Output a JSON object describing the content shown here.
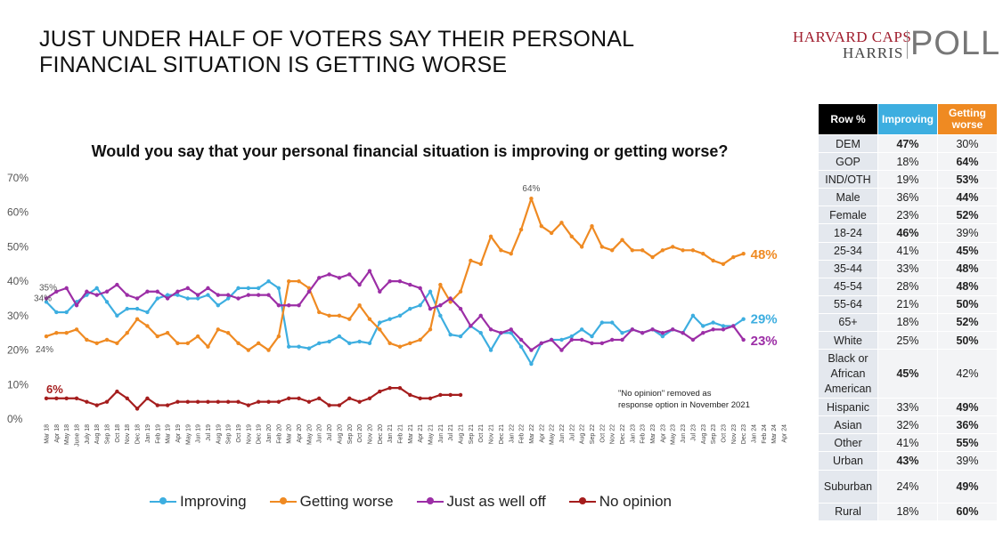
{
  "headline": "JUST UNDER HALF OF VOTERS SAY THEIR PERSONAL FINANCIAL SITUATION IS GETTING WORSE",
  "logo": {
    "caps": "HARVARD CAPS",
    "harris": "HARRIS",
    "poll": "POLL"
  },
  "colors": {
    "improving": "#3daee0",
    "worse": "#ef8a22",
    "same": "#9c2ea6",
    "noop": "#a51d1d"
  },
  "chart_data": {
    "type": "line",
    "title": "Would you say that your personal financial situation is improving or getting worse?",
    "ylim": [
      0,
      70
    ],
    "yticks": [
      "0%",
      "10%",
      "20%",
      "30%",
      "40%",
      "50%",
      "60%",
      "70%"
    ],
    "grid": false,
    "legend_position": "bottom",
    "x": [
      "Mar 18",
      "Apr 18",
      "May 18",
      "Jun 18",
      "July 18",
      "Aug 18",
      "Sep 18",
      "Oct 18",
      "Nov 18",
      "Dec 18",
      "Jan 19",
      "Feb 19",
      "Mar 19",
      "Apr 19",
      "May 19",
      "Jun 19",
      "Jul 19",
      "Aug 19",
      "Sep 19",
      "Oct 19",
      "Nov 19",
      "Dec 19",
      "Jan 20",
      "Feb 20",
      "Mar 20",
      "Apr 20",
      "May 20",
      "Jun 20",
      "Jul 20",
      "Aug 20",
      "Sep 20",
      "Oct 20",
      "Nov 20",
      "Dec 20",
      "Jan 21",
      "Feb 21",
      "Mar 21",
      "Apr 21",
      "May 21",
      "Jun 21",
      "Jul 21",
      "Aug 21",
      "Sep 21",
      "Oct 21",
      "Nov 21",
      "Dec 21",
      "Jan 22",
      "Feb 22",
      "Mar 22",
      "Apr 22",
      "May 22",
      "Jun 22",
      "Jul 22",
      "Aug 22",
      "Sep 22",
      "Oct 22",
      "Nov 22",
      "Dec 22",
      "Jan 23",
      "Feb 23",
      "Mar 23",
      "Apr 23",
      "May 23",
      "Jun 23",
      "Jul 23",
      "Aug 23",
      "Sep 23",
      "Oct 23",
      "Nov 23",
      "Dec 23",
      "Jan 24",
      "Feb 24",
      "Mar 24",
      "Apr 24"
    ],
    "xticks": [
      "Mar 18",
      "Apr 18",
      "May 18",
      "June 18",
      "July 18",
      "Aug 18",
      "Sep 18",
      "Oct 18",
      "Nov 18",
      "Dec 18",
      "Jan 19",
      "Feb 19",
      "Mar 19",
      "Apr 19",
      "May 19",
      "Jun 19",
      "Jul 19",
      "Aug 19",
      "Sep 19",
      "Oct 19",
      "Nov 19",
      "Dec 19",
      "Jan 20",
      "Feb 20",
      "Mar 20",
      "Apr 20",
      "May 20",
      "Jun 20",
      "Jul 20",
      "Aug 20",
      "Sep 20",
      "Oct 20",
      "Nov 20",
      "Dec 20",
      "Jan 21",
      "Feb 21",
      "Mar 21",
      "Apr 21",
      "May 21",
      "Jun 21",
      "Jul 21",
      "Aug 21",
      "Sep 21",
      "Oct 21",
      "Nov 21",
      "Dec 21",
      "Jan 22",
      "Feb 22",
      "Mar 22",
      "Apr 22",
      "May 22",
      "Jun 22",
      "Jul 22",
      "Aug 22",
      "Sep 22",
      "Oct 22",
      "Nov 22",
      "Dec 22",
      "Jan 23",
      "Feb 23",
      "Mar 23",
      "Apr 23",
      "May 23",
      "Jun 23",
      "Jul 23",
      "Aug 23",
      "Sep 23",
      "Oct 23",
      "Nov 23",
      "Dec 23",
      "Jan 24",
      "Feb 24",
      "Mar 24",
      "Apr 24"
    ],
    "series": [
      {
        "name": "Improving",
        "key": "improving",
        "values": [
          34,
          31,
          31,
          34,
          36,
          38,
          34,
          30,
          32,
          32,
          31,
          35,
          36,
          36,
          35,
          35,
          36,
          33,
          35,
          38,
          38,
          38,
          40,
          38,
          21,
          21,
          20.5,
          22,
          22.5,
          24,
          22,
          22.5,
          22,
          28,
          29,
          30,
          32,
          33,
          37,
          30,
          24.5,
          24,
          27,
          25,
          20,
          25,
          25,
          21,
          16,
          22,
          23,
          23,
          24,
          26,
          24,
          28,
          28,
          25,
          26,
          25,
          26,
          24,
          26,
          25,
          30,
          27,
          28,
          27,
          27,
          29,
          null,
          null,
          null,
          null
        ]
      },
      {
        "name": "Getting worse",
        "key": "worse",
        "values": [
          24,
          25,
          25,
          26,
          23,
          22,
          23,
          22,
          25,
          29,
          27,
          24,
          25,
          22,
          22,
          24,
          21,
          26,
          25,
          22,
          20,
          22,
          20,
          24,
          40,
          40,
          38,
          31,
          30,
          30,
          29,
          33,
          29,
          26,
          22,
          21,
          22,
          23,
          26,
          39,
          34,
          37,
          46,
          45,
          53,
          49,
          48,
          55,
          64,
          56,
          54,
          57,
          53,
          50,
          56,
          50,
          49,
          52,
          49,
          49,
          47,
          49,
          50,
          49,
          49,
          48,
          46,
          45,
          47,
          48,
          null,
          null,
          null,
          null
        ]
      },
      {
        "name": "Just as well off",
        "key": "same",
        "values": [
          35,
          37,
          38,
          33,
          37,
          36,
          37,
          39,
          36,
          35,
          37,
          37,
          35,
          37,
          38,
          36,
          38,
          36,
          36,
          35,
          36,
          36,
          36,
          33,
          33,
          33,
          37,
          41,
          42,
          41,
          42,
          39,
          43,
          37,
          40,
          40,
          39,
          38,
          32,
          33,
          35,
          32,
          27,
          30,
          26,
          25,
          26,
          23,
          20,
          22,
          23,
          20,
          23,
          23,
          22,
          22,
          23,
          23,
          26,
          25,
          26,
          25,
          26,
          25,
          23,
          25,
          26,
          26,
          27,
          23,
          null,
          null,
          null,
          null
        ]
      },
      {
        "name": "No opinion",
        "key": "noop",
        "values": [
          6,
          6,
          6,
          6,
          5,
          4,
          5,
          8,
          6,
          3,
          6,
          4,
          4,
          5,
          5,
          5,
          5,
          5,
          5,
          5,
          4,
          5,
          5,
          5,
          6,
          6,
          5,
          6,
          4,
          4,
          6,
          5,
          6,
          8,
          9,
          9,
          7,
          6,
          6,
          7,
          7,
          7,
          null,
          null,
          null,
          null,
          null,
          null,
          null,
          null,
          null,
          null,
          null,
          null,
          null,
          null,
          null,
          null,
          null,
          null,
          null,
          null,
          null,
          null,
          null,
          null,
          null,
          null,
          null,
          null,
          null,
          null,
          null,
          null
        ]
      }
    ],
    "annotations": {
      "improving_start": "34%",
      "worse_start": "24%",
      "same_start": "35%",
      "noop_start": "6%",
      "worse_peak": "64%",
      "improving_end": "29%",
      "worse_end": "48%",
      "same_end": "23%",
      "note": "\"No opinion\" removed as response option in November 2021"
    }
  },
  "table": {
    "headers": [
      "Row %",
      "Improving",
      "Getting worse"
    ],
    "rows": [
      {
        "label": "DEM",
        "improving": "47%",
        "worse": "30%",
        "bold": "improving"
      },
      {
        "label": "GOP",
        "improving": "18%",
        "worse": "64%",
        "bold": "worse"
      },
      {
        "label": "IND/OTH",
        "improving": "19%",
        "worse": "53%",
        "bold": "worse"
      },
      {
        "label": "Male",
        "improving": "36%",
        "worse": "44%",
        "bold": "worse"
      },
      {
        "label": "Female",
        "improving": "23%",
        "worse": "52%",
        "bold": "worse"
      },
      {
        "label": "18-24",
        "improving": "46%",
        "worse": "39%",
        "bold": "improving"
      },
      {
        "label": "25-34",
        "improving": "41%",
        "worse": "45%",
        "bold": "worse"
      },
      {
        "label": "35-44",
        "improving": "33%",
        "worse": "48%",
        "bold": "worse"
      },
      {
        "label": "45-54",
        "improving": "28%",
        "worse": "48%",
        "bold": "worse"
      },
      {
        "label": "55-64",
        "improving": "21%",
        "worse": "50%",
        "bold": "worse"
      },
      {
        "label": "65+",
        "improving": "18%",
        "worse": "52%",
        "bold": "worse"
      },
      {
        "label": "White",
        "improving": "25%",
        "worse": "50%",
        "bold": "worse"
      },
      {
        "label": "Black or African American",
        "improving": "45%",
        "worse": "42%",
        "bold": "improving"
      },
      {
        "label": "Hispanic",
        "improving": "33%",
        "worse": "49%",
        "bold": "worse"
      },
      {
        "label": "Asian",
        "improving": "32%",
        "worse": "36%",
        "bold": "worse"
      },
      {
        "label": "Other",
        "improving": "41%",
        "worse": "55%",
        "bold": "worse"
      },
      {
        "label": "Urban",
        "improving": "43%",
        "worse": "39%",
        "bold": "improving"
      },
      {
        "label": "Suburban",
        "improving": "24%",
        "worse": "49%",
        "bold": "worse"
      },
      {
        "label": "Rural",
        "improving": "18%",
        "worse": "60%",
        "bold": "worse"
      }
    ]
  }
}
